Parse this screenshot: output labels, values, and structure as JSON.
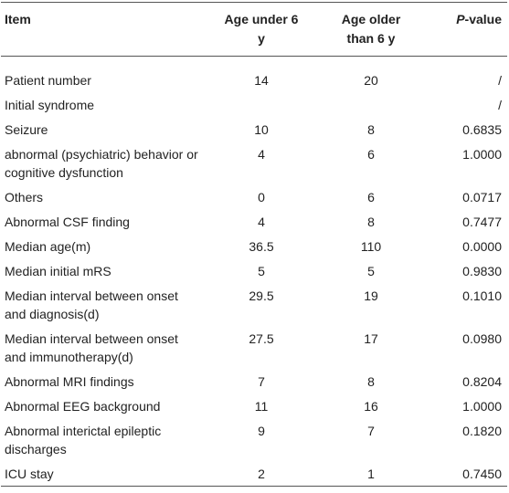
{
  "table": {
    "header": [
      "Item",
      "Age under 6 y",
      "Age older than 6 y",
      "P-value"
    ],
    "rows": [
      [
        "Patient number",
        "14",
        "20",
        "/"
      ],
      [
        "Initial syndrome",
        "",
        "",
        "/"
      ],
      [
        "Seizure",
        "10",
        "8",
        "0.6835"
      ],
      [
        "abnormal (psychiatric) behavior or cognitive dysfunction",
        "4",
        "6",
        "1.0000"
      ],
      [
        "Others",
        "0",
        "6",
        "0.0717"
      ],
      [
        "Abnormal CSF finding",
        "4",
        "8",
        "0.7477"
      ],
      [
        "Median age(m)",
        "36.5",
        "110",
        "0.0000"
      ],
      [
        "Median initial mRS",
        "5",
        "5",
        "0.9830"
      ],
      [
        "Median interval between onset and diagnosis(d)",
        "29.5",
        "19",
        "0.1010"
      ],
      [
        "Median interval between onset and immunotherapy(d)",
        "27.5",
        "17",
        "0.0980"
      ],
      [
        "Abnormal MRI findings",
        "7",
        "8",
        "0.8204"
      ],
      [
        "Abnormal EEG background",
        "11",
        "16",
        "1.0000"
      ],
      [
        "Abnormal interictal epileptic discharges",
        "9",
        "7",
        "0.1820"
      ],
      [
        "ICU stay",
        "2",
        "1",
        "0.7450"
      ]
    ]
  }
}
